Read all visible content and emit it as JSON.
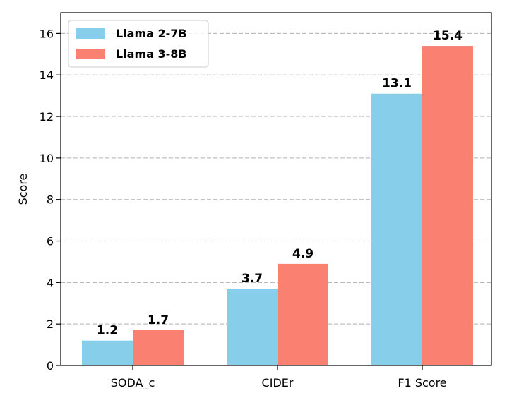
{
  "chart_data": {
    "type": "bar",
    "title": "",
    "xlabel": "",
    "ylabel": "Score",
    "categories": [
      "SODA_c",
      "CIDEr",
      "F1 Score"
    ],
    "ylim": [
      0,
      17
    ],
    "yticks": [
      0,
      2,
      4,
      6,
      8,
      10,
      12,
      14,
      16
    ],
    "grid": "y-dashed",
    "legend_position": "top-left",
    "series": [
      {
        "name": "Llama 2-7B",
        "color": "#87CEEB",
        "values": [
          1.2,
          3.7,
          13.1
        ],
        "labels": [
          "1.2",
          "3.7",
          "13.1"
        ]
      },
      {
        "name": "Llama 3-8B",
        "color": "#FA8072",
        "values": [
          1.7,
          4.9,
          15.4
        ],
        "labels": [
          "1.7",
          "4.9",
          "15.4"
        ]
      }
    ]
  }
}
